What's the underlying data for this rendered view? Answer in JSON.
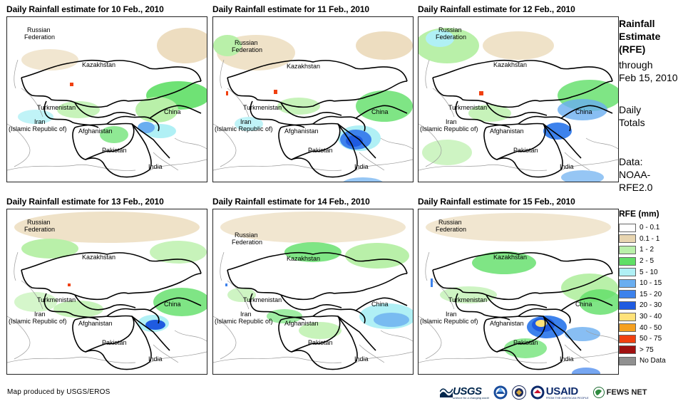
{
  "panels": [
    {
      "title": "Daily Rainfall estimate for 10 Feb., 2010"
    },
    {
      "title": "Daily Rainfall estimate for 11 Feb., 2010"
    },
    {
      "title": "Daily Rainfall estimate for 12 Feb., 2010"
    },
    {
      "title": "Daily Rainfall estimate for 13 Feb., 2010"
    },
    {
      "title": "Daily Rainfall estimate for 14 Feb., 2010"
    },
    {
      "title": "Daily Rainfall estimate for 15 Feb., 2010"
    }
  ],
  "map_labels": {
    "russia_1": "Russian",
    "russia_2": "Federation",
    "kazakhstan": "Kazakhstan",
    "turkmenistan": "Turkmenistan",
    "china": "China",
    "iran_1": "Iran",
    "iran_2": "(Islamic Republic of)",
    "afghanistan": "Afghanistan",
    "pakistan": "Pakistan",
    "india": "India"
  },
  "sidebar": {
    "rfe_1": "Rainfall",
    "rfe_2": "Estimate",
    "rfe_3": "(RFE)",
    "through_1": "through",
    "through_2": "Feb 15, 2010",
    "daily_1": "Daily",
    "daily_2": "Totals",
    "data_1": "Data:",
    "data_2": "NOAA-",
    "data_3": "RFE2.0"
  },
  "legend": {
    "title": "RFE (mm)",
    "items": [
      {
        "label": "0 - 0.1",
        "color": "#ffffff"
      },
      {
        "label": "0.1 - 1",
        "color": "#e8d5b0"
      },
      {
        "label": "1 - 2",
        "color": "#b9f0a9"
      },
      {
        "label": "2 - 5",
        "color": "#5fdf66"
      },
      {
        "label": "5 - 10",
        "color": "#b0f0f5"
      },
      {
        "label": "10 - 15",
        "color": "#6aaef0"
      },
      {
        "label": "15 - 20",
        "color": "#3d82ec"
      },
      {
        "label": "20 - 30",
        "color": "#1f5be0"
      },
      {
        "label": "30 - 40",
        "color": "#ffe27a"
      },
      {
        "label": "40 - 50",
        "color": "#f5a020"
      },
      {
        "label": "50 - 75",
        "color": "#f04010"
      },
      {
        "label": "> 75",
        "color": "#a01010"
      },
      {
        "label": "No Data",
        "color": "#909090"
      }
    ]
  },
  "footer": {
    "credit": "Map produced by USGS/EROS",
    "logos": {
      "usgs": "USGS",
      "usgs_tagline": "science for a changing world",
      "usaid": "USAID",
      "usaid_tagline": "FROM THE AMERICAN PEOPLE",
      "fews": "FEWS NET"
    }
  },
  "colors": {
    "rain_light": "#e8d5b0",
    "rain_green_light": "#b9f0a9",
    "rain_green": "#5fdf66",
    "rain_cyan": "#b0f0f5",
    "rain_blue": "#3d82ec",
    "rain_dark_blue": "#1f5be0",
    "border": "#000000"
  }
}
